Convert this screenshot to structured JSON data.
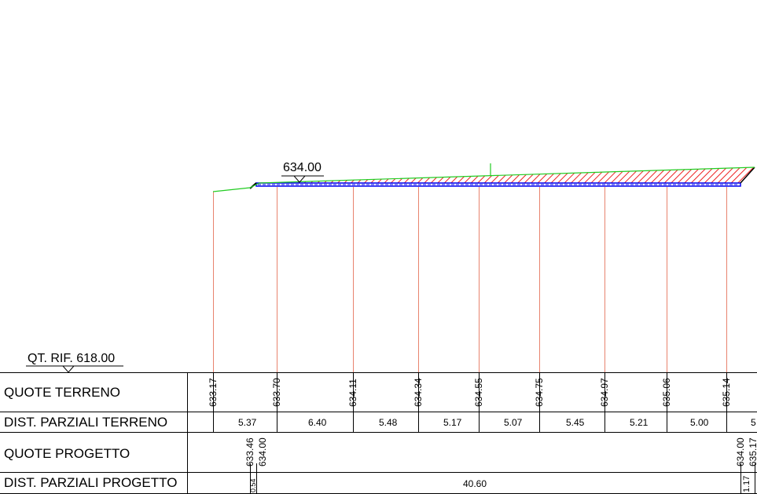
{
  "title_elevation": "634.00",
  "reference_label": "QT. RIF. 618.00",
  "rows": {
    "quote_terreno": "QUOTE TERRENO",
    "dist_parziali_terreno": "DIST. PARZIALI TERRENO",
    "quote_progetto": "QUOTE PROGETTO",
    "dist_parziali_progetto": "DIST. PARZIALI PROGETTO"
  },
  "quote_terreno_values": [
    "633.17",
    "633.70",
    "634.11",
    "634.34",
    "634.55",
    "634.75",
    "634.97",
    "635.06",
    "635.14"
  ],
  "dist_terreno_values": [
    "5.37",
    "6.40",
    "5.48",
    "5.17",
    "5.07",
    "5.45",
    "5.21",
    "5.00",
    "5"
  ],
  "quote_progetto_left": [
    "633.46",
    "634.00"
  ],
  "quote_progetto_right": [
    "634.00",
    "635.17"
  ],
  "dist_progetto_values": [
    "0.54",
    "40.60",
    "1.17"
  ],
  "colors": {
    "terrain": "#22cc22",
    "section_lines": "#e8836e",
    "road_outline": "#0000ee",
    "hatch": "#ee2222",
    "black": "#000000"
  }
}
